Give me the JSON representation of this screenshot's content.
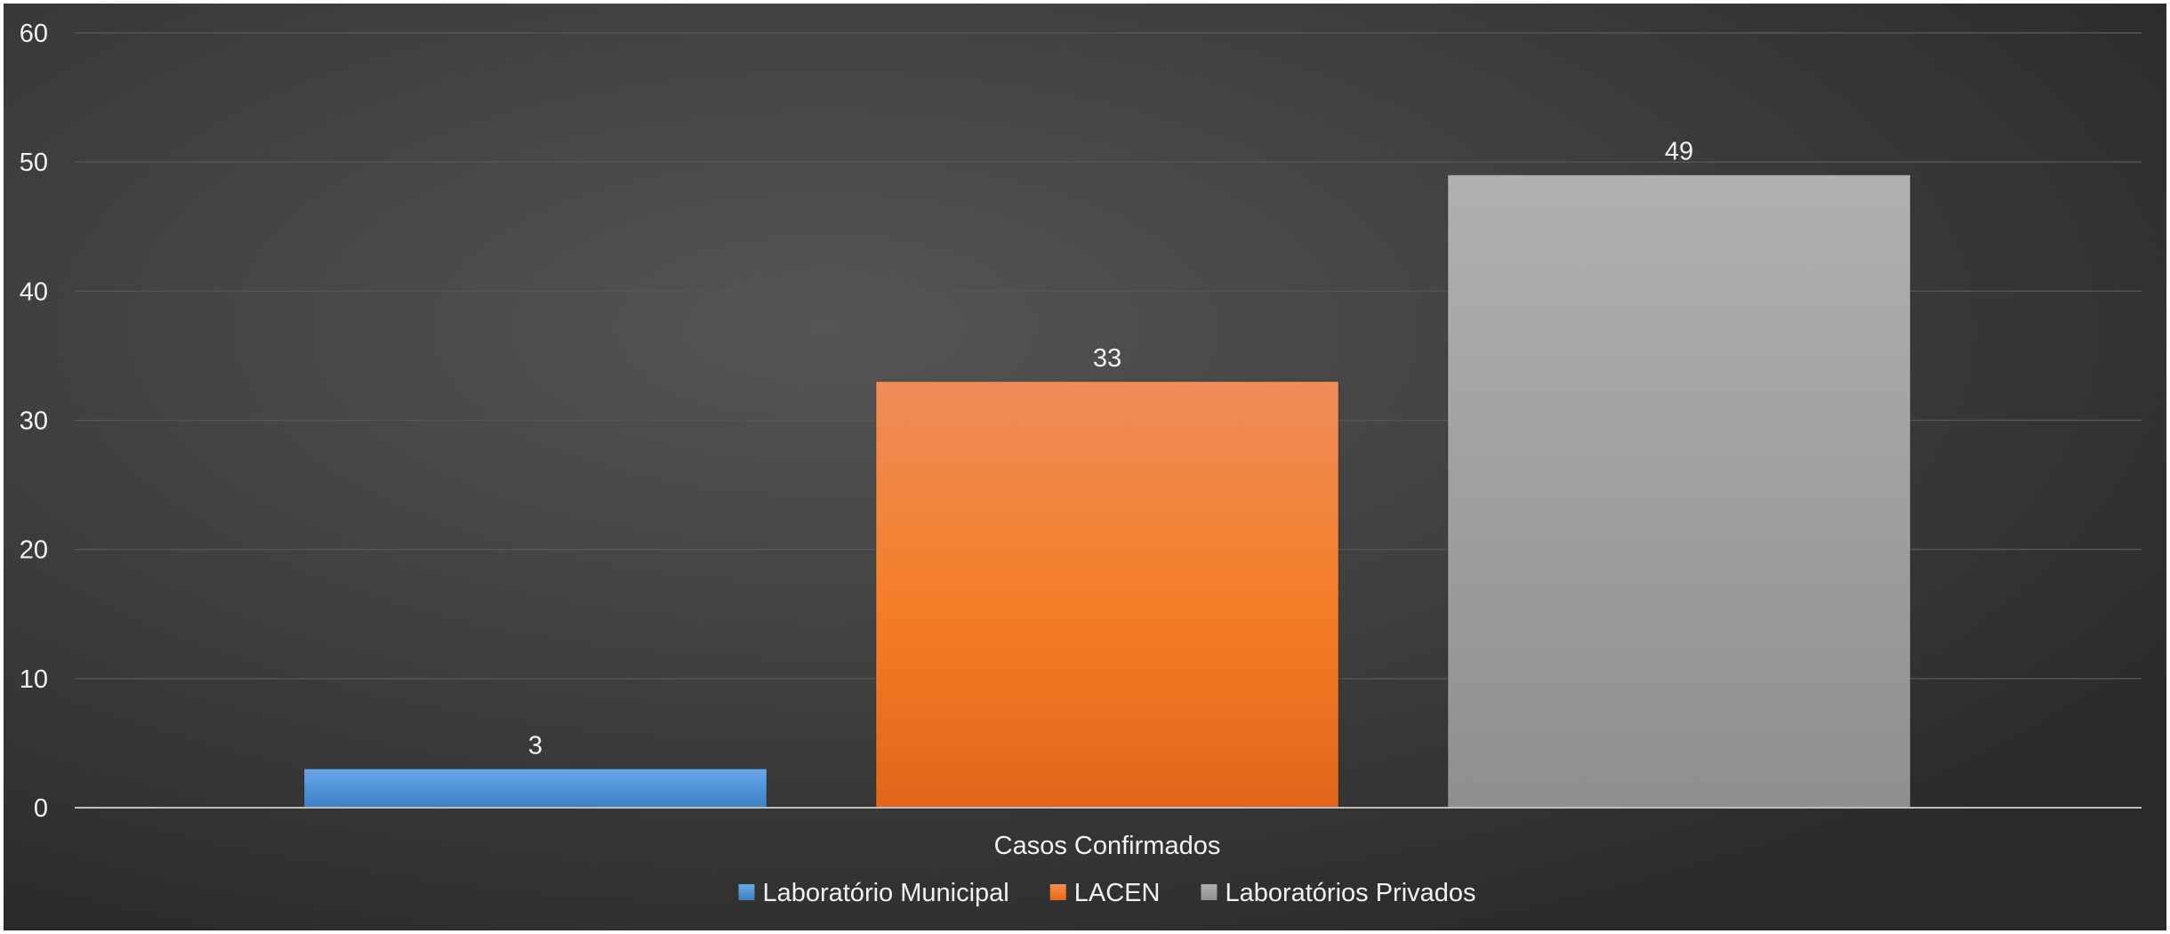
{
  "chart_data": {
    "type": "bar",
    "categories": [
      "Casos Confirmados"
    ],
    "series": [
      {
        "name": "Laboratório Municipal",
        "values": [
          3
        ],
        "color": "#4b8fd4"
      },
      {
        "name": "LACEN",
        "values": [
          33
        ],
        "color": "#f27b22"
      },
      {
        "name": "Laboratórios Privados",
        "values": [
          49
        ],
        "color": "#a6a6a6"
      }
    ],
    "ylim": [
      0,
      60
    ],
    "yticks": [
      0,
      10,
      20,
      30,
      40,
      50,
      60
    ],
    "data_labels": true,
    "grid": true,
    "legend_position": "bottom",
    "background": "#3a3a3a",
    "text_color": "#f2f2f2",
    "gridline_color": "#555555"
  }
}
